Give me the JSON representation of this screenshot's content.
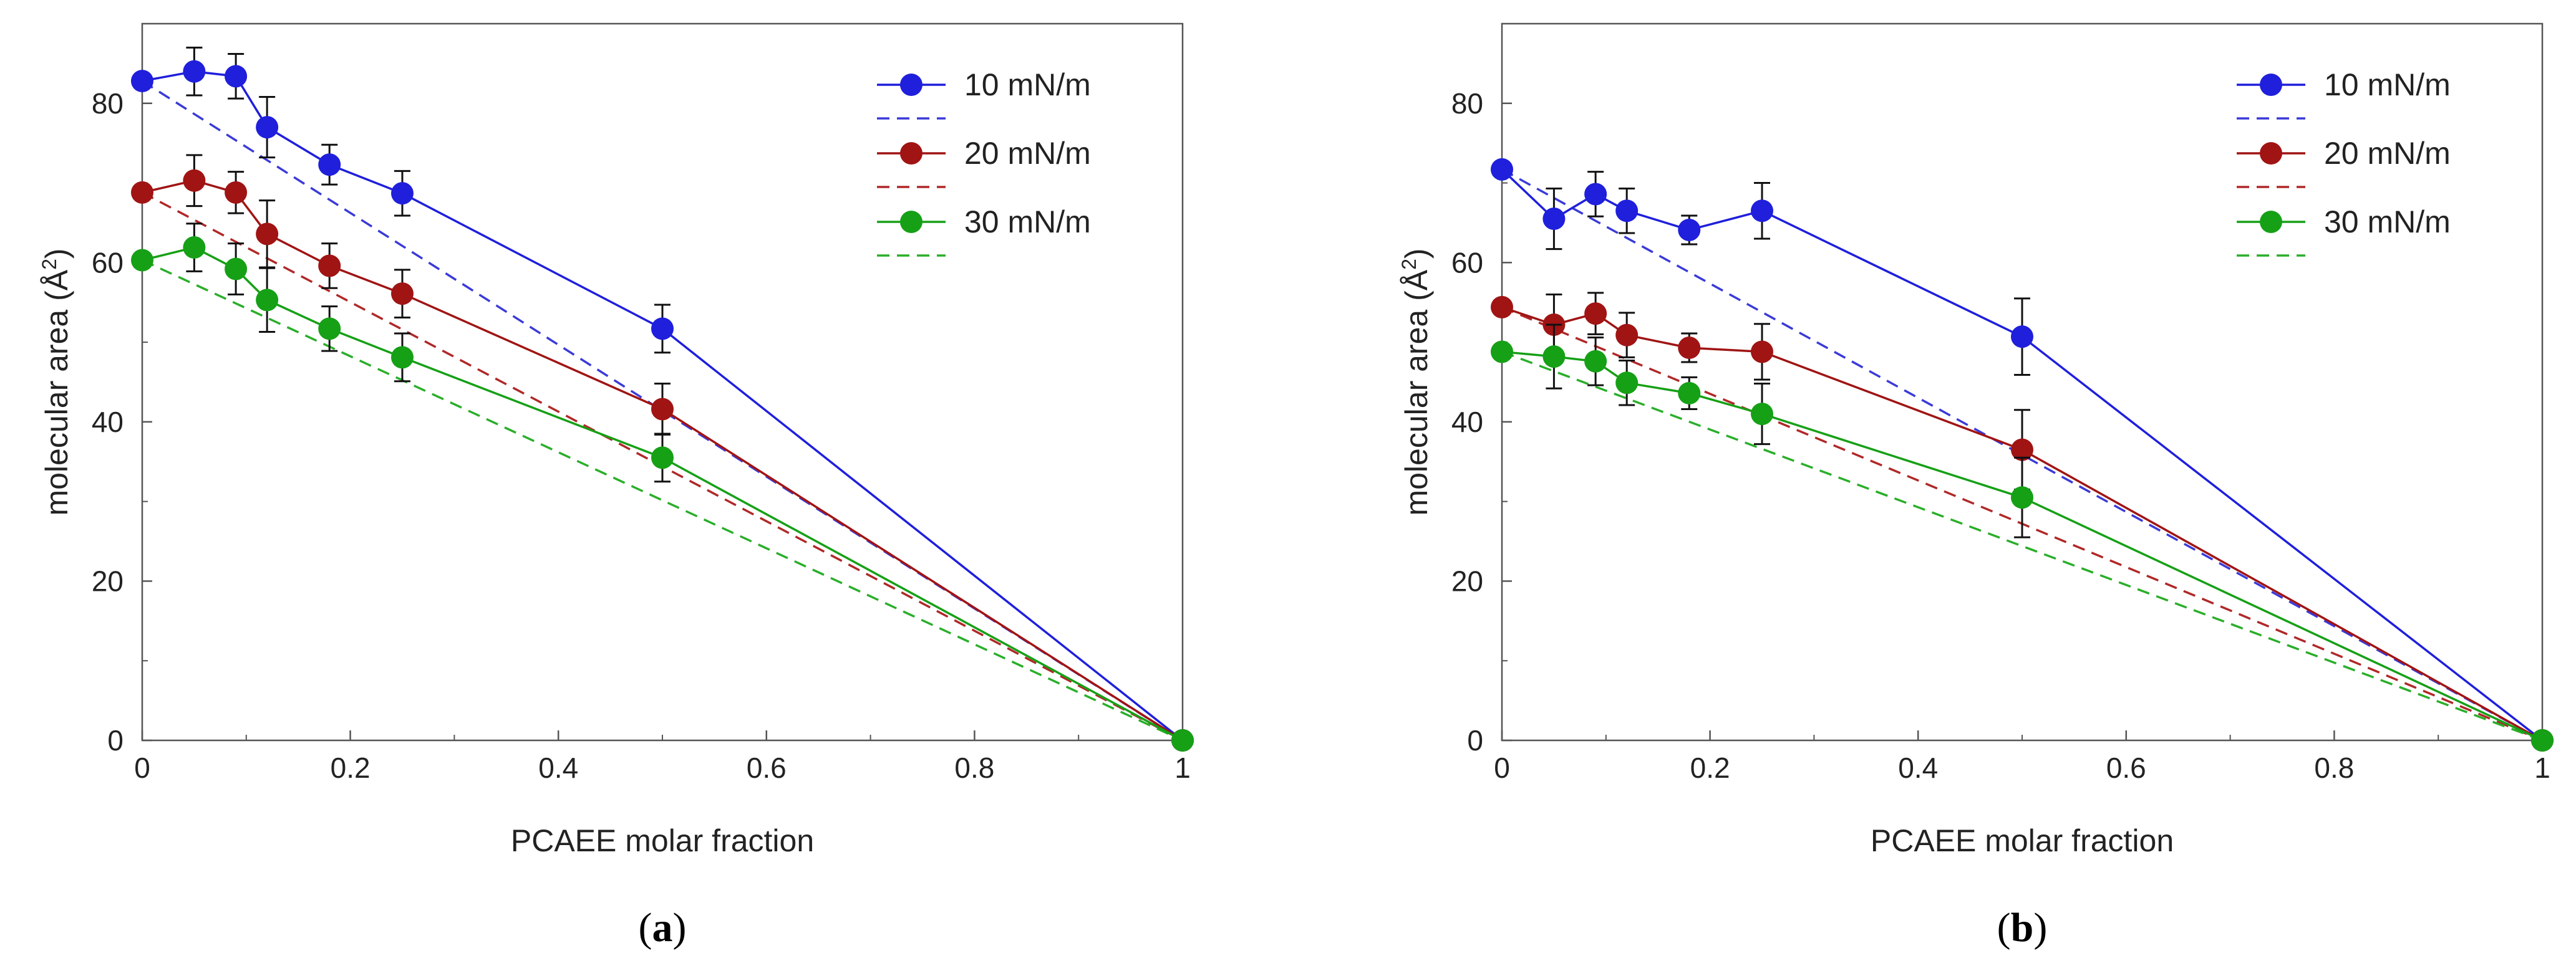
{
  "chart_data": [
    {
      "type": "line",
      "panel_label": "(a)",
      "panel_letter": "a",
      "xlabel": "PCAEE molar fraction",
      "ylabel": "molecular area (Å²)",
      "ylabel_main": "molecular area (Å",
      "ylabel_sup": "2",
      "ylabel_end": ")",
      "xlim": [
        0,
        1
      ],
      "ylim": [
        0,
        90
      ],
      "xticks": [
        0,
        0.2,
        0.4,
        0.6,
        0.8,
        1
      ],
      "xtick_labels": [
        "0",
        "0.2",
        "0.4",
        "0.6",
        "0.8",
        "1"
      ],
      "yticks": [
        0,
        20,
        40,
        60,
        80
      ],
      "ytick_labels": [
        "0",
        "20",
        "40",
        "60",
        "80"
      ],
      "x": [
        0,
        0.05,
        0.09,
        0.12,
        0.18,
        0.25,
        0.5,
        1
      ],
      "legend_position": "top-right",
      "series": [
        {
          "name": "10 mN/m",
          "color": "#1f1fdc",
          "ideal_color": "#3a3ad8",
          "values": [
            82.8,
            84.0,
            83.4,
            77.0,
            72.3,
            68.7,
            51.7,
            0
          ],
          "errors": [
            0,
            3.0,
            2.8,
            3.8,
            2.5,
            2.8,
            3.0,
            0
          ],
          "ideal": [
            82.8,
            0
          ]
        },
        {
          "name": "20 mN/m",
          "color": "#a01414",
          "ideal_color": "#b02828",
          "values": [
            68.8,
            70.3,
            68.8,
            63.6,
            59.6,
            56.1,
            41.6,
            0
          ],
          "errors": [
            0,
            3.2,
            2.6,
            4.2,
            2.8,
            3.0,
            3.2,
            0
          ],
          "ideal": [
            68.8,
            0
          ]
        },
        {
          "name": "30 mN/m",
          "color": "#16a016",
          "ideal_color": "#2aae2a",
          "values": [
            60.3,
            61.9,
            59.2,
            55.3,
            51.7,
            48.1,
            35.5,
            0
          ],
          "errors": [
            0,
            3.0,
            3.2,
            4.0,
            2.8,
            3.0,
            3.0,
            0
          ],
          "ideal": [
            60.3,
            0
          ]
        }
      ]
    },
    {
      "type": "line",
      "panel_label": "(b)",
      "panel_letter": "b",
      "xlabel": "PCAEE molar fraction",
      "ylabel": "molecular area (Å²)",
      "ylabel_main": "molecular area (Å",
      "ylabel_sup": "2",
      "ylabel_end": ")",
      "xlim": [
        0,
        1
      ],
      "ylim": [
        0,
        90
      ],
      "xticks": [
        0,
        0.2,
        0.4,
        0.6,
        0.8,
        1
      ],
      "xtick_labels": [
        "0",
        "0.2",
        "0.4",
        "0.6",
        "0.8",
        "1"
      ],
      "yticks": [
        0,
        20,
        40,
        60,
        80
      ],
      "ytick_labels": [
        "0",
        "20",
        "40",
        "60",
        "80"
      ],
      "x": [
        0,
        0.05,
        0.09,
        0.12,
        0.18,
        0.25,
        0.5,
        1
      ],
      "legend_position": "top-right",
      "series": [
        {
          "name": "10 mN/m",
          "color": "#1f1fdc",
          "ideal_color": "#3a3ad8",
          "values": [
            71.7,
            65.5,
            68.6,
            66.5,
            64.1,
            66.5,
            50.7,
            0
          ],
          "errors": [
            0,
            3.8,
            2.8,
            2.8,
            1.8,
            3.5,
            4.8,
            0
          ],
          "ideal": [
            71.7,
            0
          ]
        },
        {
          "name": "20 mN/m",
          "color": "#a01414",
          "ideal_color": "#b02828",
          "values": [
            54.4,
            52.2,
            53.6,
            50.9,
            49.3,
            48.8,
            36.5,
            0
          ],
          "errors": [
            0,
            3.8,
            2.6,
            2.8,
            1.8,
            3.5,
            5.0,
            0
          ],
          "ideal": [
            54.4,
            0
          ]
        },
        {
          "name": "30 mN/m",
          "color": "#16a016",
          "ideal_color": "#2aae2a",
          "values": [
            48.8,
            48.2,
            47.6,
            44.9,
            43.6,
            41.0,
            30.5,
            0
          ],
          "errors": [
            0,
            4.0,
            3.0,
            2.8,
            2.0,
            3.8,
            5.0,
            0
          ],
          "ideal": [
            48.8,
            0
          ]
        }
      ]
    }
  ]
}
